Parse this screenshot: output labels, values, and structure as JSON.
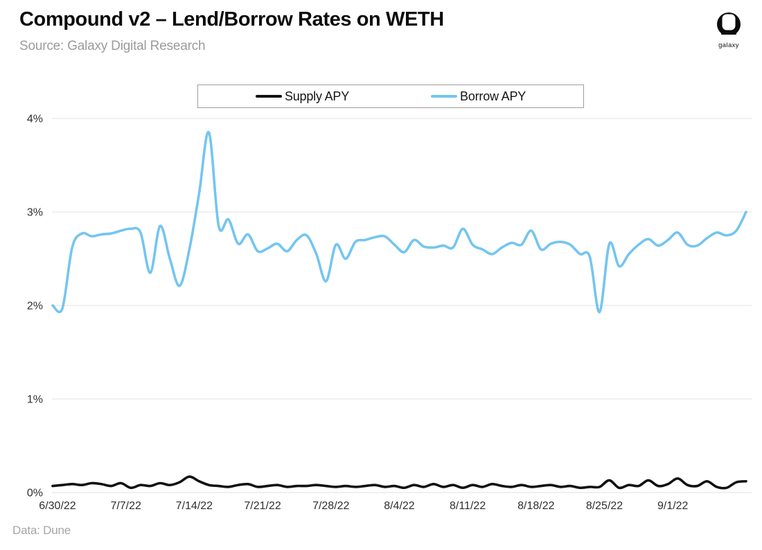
{
  "header": {
    "title": "Compound v2 – Lend/Borrow Rates on WETH",
    "source": "Source: Galaxy Digital Research",
    "logo_text": "galaxy"
  },
  "legend": {
    "items": [
      {
        "label": "Supply APY",
        "color": "#111111"
      },
      {
        "label": "Borrow APY",
        "color": "#74c5f0"
      }
    ]
  },
  "footer": {
    "data_source": "Data: Dune"
  },
  "colors": {
    "supply_line": "#111111",
    "borrow_line": "#74c5f0",
    "grid": "#e8e8e8",
    "axis_text": "#2e2e2e",
    "muted_text": "#9e9e9e",
    "title_text": "#0c0c0c"
  },
  "chart_data": {
    "type": "line",
    "title": "Compound v2 – Lend/Borrow Rates on WETH",
    "xlabel": "",
    "ylabel": "",
    "ylim": [
      0,
      4
    ],
    "grid": "horizontal-only",
    "legend_position": "top-center",
    "y_tick_labels": [
      "0%",
      "1%",
      "2%",
      "3%",
      "4%"
    ],
    "y_tick_values": [
      0,
      1,
      2,
      3,
      4
    ],
    "x_tick_labels": [
      "6/30/22",
      "7/7/22",
      "7/14/22",
      "7/21/22",
      "7/28/22",
      "8/4/22",
      "8/11/22",
      "8/18/22",
      "8/25/22",
      "9/1/22"
    ],
    "x_tick_day_indices": [
      0,
      7,
      14,
      21,
      28,
      35,
      42,
      49,
      56,
      63
    ],
    "x_start_date": "6/30/22",
    "x_frequency": "daily",
    "series": [
      {
        "name": "Supply APY",
        "color": "#111111",
        "unit": "%",
        "values": [
          0.07,
          0.08,
          0.09,
          0.08,
          0.1,
          0.09,
          0.07,
          0.1,
          0.05,
          0.08,
          0.07,
          0.1,
          0.08,
          0.11,
          0.17,
          0.12,
          0.08,
          0.07,
          0.06,
          0.08,
          0.09,
          0.06,
          0.07,
          0.08,
          0.06,
          0.07,
          0.07,
          0.08,
          0.07,
          0.06,
          0.07,
          0.06,
          0.07,
          0.08,
          0.06,
          0.07,
          0.05,
          0.08,
          0.06,
          0.09,
          0.06,
          0.08,
          0.05,
          0.08,
          0.06,
          0.09,
          0.07,
          0.06,
          0.08,
          0.06,
          0.07,
          0.08,
          0.06,
          0.07,
          0.05,
          0.06,
          0.06,
          0.13,
          0.05,
          0.08,
          0.07,
          0.13,
          0.07,
          0.09,
          0.15,
          0.08,
          0.07,
          0.12,
          0.06,
          0.05,
          0.11,
          0.12
        ]
      },
      {
        "name": "Borrow APY",
        "color": "#74c5f0",
        "unit": "%",
        "values": [
          2.0,
          1.97,
          2.62,
          2.77,
          2.74,
          2.76,
          2.77,
          2.8,
          2.82,
          2.78,
          2.35,
          2.85,
          2.5,
          2.21,
          2.6,
          3.2,
          3.85,
          2.85,
          2.92,
          2.66,
          2.76,
          2.58,
          2.61,
          2.66,
          2.58,
          2.7,
          2.75,
          2.55,
          2.26,
          2.65,
          2.5,
          2.68,
          2.7,
          2.73,
          2.74,
          2.65,
          2.57,
          2.7,
          2.63,
          2.62,
          2.64,
          2.62,
          2.82,
          2.65,
          2.6,
          2.55,
          2.62,
          2.67,
          2.65,
          2.8,
          2.6,
          2.66,
          2.68,
          2.65,
          2.55,
          2.52,
          1.93,
          2.66,
          2.42,
          2.55,
          2.65,
          2.71,
          2.64,
          2.7,
          2.78,
          2.65,
          2.64,
          2.72,
          2.78,
          2.75,
          2.8,
          3.0
        ]
      }
    ]
  }
}
